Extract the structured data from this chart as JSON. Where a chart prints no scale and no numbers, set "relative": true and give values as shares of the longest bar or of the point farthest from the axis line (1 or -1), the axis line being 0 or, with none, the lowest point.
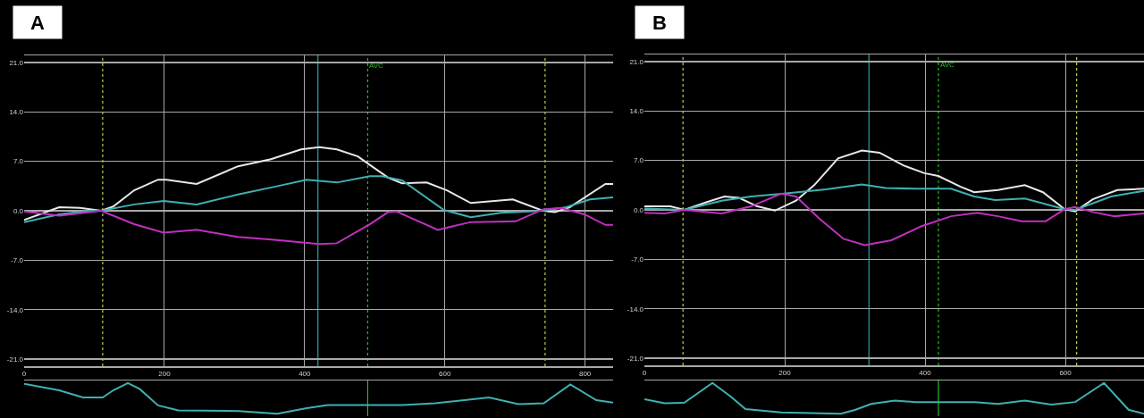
{
  "chart_data": [
    {
      "type": "line",
      "title": "A",
      "x": [
        0,
        50,
        80,
        110,
        127,
        157,
        191,
        203,
        246,
        305,
        352,
        395,
        421,
        446,
        476,
        493,
        519,
        539,
        574,
        603,
        637,
        697,
        740,
        757,
        778,
        829,
        840
      ],
      "series": [
        {
          "color": "#e8e8e8",
          "values": [
            -1.3,
            0.5,
            0.4,
            0,
            0.6,
            2.9,
            4.4,
            4.4,
            3.8,
            6.3,
            7.3,
            8.7,
            9.0,
            8.7,
            7.7,
            6.5,
            4.7,
            3.9,
            4.0,
            2.9,
            1.1,
            1.6,
            0,
            -0.2,
            0.5,
            3.8,
            3.8
          ]
        },
        {
          "color": "#40b0b0",
          "x": [
            0,
            50,
            93,
            110,
            157,
            199,
            246,
            305,
            357,
            403,
            446,
            493,
            510,
            539,
            599,
            637,
            680,
            740,
            773,
            807,
            840
          ],
          "values": [
            -1.6,
            -0.5,
            0,
            0,
            0.9,
            1.4,
            0.9,
            2.3,
            3.4,
            4.4,
            4.0,
            4.9,
            4.9,
            4.3,
            0.1,
            -0.9,
            -0.3,
            0,
            0.5,
            1.6,
            1.9
          ]
        },
        {
          "color": "#c030c0",
          "x": [
            0,
            50,
            110,
            157,
            199,
            246,
            305,
            357,
            421,
            446,
            493,
            519,
            531,
            590,
            637,
            701,
            740,
            765,
            799,
            829,
            840
          ],
          "values": [
            -0.1,
            -0.7,
            0,
            -1.9,
            -3.1,
            -2.7,
            -3.7,
            -4.1,
            -4.7,
            -4.6,
            -1.9,
            -0.2,
            -0.1,
            -2.7,
            -1.6,
            -1.5,
            0.2,
            0.4,
            -0.5,
            -2.0,
            -2.0
          ]
        }
      ],
      "xlim": [
        0,
        840
      ],
      "xticks": [
        0,
        200,
        400,
        600,
        800
      ],
      "ylim": [
        -22,
        22
      ],
      "yticks": [
        {
          "value": 21,
          "label": "21.0"
        },
        {
          "value": 14,
          "label": "14.0"
        },
        {
          "value": 7,
          "label": "7.0"
        },
        {
          "value": 0,
          "label": "0.0"
        },
        {
          "value": -7,
          "label": "-7.0"
        },
        {
          "value": -14,
          "label": "-14.0"
        },
        {
          "value": -21,
          "label": "-21.0"
        }
      ],
      "grid": true,
      "line_style": "solid",
      "marker": "none",
      "ref_lines": [
        {
          "axis": "x",
          "value": 112,
          "color": "#c8c850",
          "line_style": "dotted"
        },
        {
          "axis": "x",
          "value": 419,
          "color": "#30a0a0",
          "line_style": "solid"
        },
        {
          "axis": "x",
          "value": 490,
          "color": "#20c020",
          "line_style": "dotted",
          "label": "AVC"
        },
        {
          "axis": "x",
          "value": 743,
          "color": "#c8c850",
          "line_style": "dotted"
        }
      ]
    },
    {
      "type": "line",
      "relative": true,
      "tick_labels": false,
      "xlim": [
        0,
        840
      ],
      "line_style": "solid",
      "marker": "none",
      "x": [
        0,
        50,
        84,
        112,
        127,
        148,
        165,
        191,
        220,
        306,
        361,
        403,
        433,
        540,
        586,
        663,
        705,
        741,
        779,
        816,
        840
      ],
      "series": [
        {
          "color": "#40b0b0",
          "values": [
            0.97,
            0.76,
            0.53,
            0.53,
            0.76,
            1.0,
            0.8,
            0.27,
            0.11,
            0.09,
            0,
            0.18,
            0.28,
            0.28,
            0.34,
            0.53,
            0.31,
            0.34,
            0.95,
            0.44,
            0.36
          ]
        }
      ],
      "ref_lines": [
        {
          "axis": "x",
          "value": 490,
          "color": "#20c020",
          "line_style": "solid"
        }
      ]
    },
    {
      "type": "line",
      "title": "B",
      "x": [
        0,
        37,
        57,
        89,
        114,
        135,
        161,
        186,
        216,
        242,
        276,
        310,
        335,
        369,
        399,
        419,
        450,
        470,
        504,
        542,
        568,
        599,
        614,
        639,
        674,
        712
      ],
      "series": [
        {
          "color": "#e8e8e8",
          "values": [
            0.5,
            0.5,
            0,
            1.1,
            1.9,
            1.7,
            0.5,
            -0.1,
            1.3,
            3.5,
            7.3,
            8.4,
            8.1,
            6.3,
            5.2,
            4.8,
            3.3,
            2.5,
            2.8,
            3.5,
            2.5,
            0.1,
            -0.2,
            1.5,
            2.8,
            3.0
          ]
        },
        {
          "color": "#40b0b0",
          "x": [
            0,
            57,
            110,
            152,
            199,
            259,
            310,
            344,
            386,
            437,
            470,
            500,
            542,
            599,
            614,
            665,
            712
          ],
          "values": [
            0.2,
            0,
            1.3,
            1.9,
            2.3,
            2.9,
            3.6,
            3.1,
            3.0,
            3.0,
            1.9,
            1.4,
            1.6,
            0.1,
            0,
            1.9,
            2.7
          ]
        },
        {
          "color": "#c030c0",
          "x": [
            0,
            29,
            57,
            110,
            152,
            195,
            216,
            250,
            284,
            314,
            352,
            395,
            437,
            474,
            504,
            538,
            572,
            599,
            614,
            639,
            670,
            712
          ],
          "values": [
            -0.4,
            -0.5,
            0,
            -0.5,
            0.5,
            2.3,
            1.9,
            -1.3,
            -4.1,
            -5.0,
            -4.3,
            -2.3,
            -0.9,
            -0.4,
            -0.9,
            -1.6,
            -1.6,
            0.1,
            0.4,
            -0.3,
            -0.9,
            -0.5
          ]
        }
      ],
      "xlim": [
        0,
        712
      ],
      "xticks": [
        0,
        200,
        400,
        600
      ],
      "ylim": [
        -22,
        22
      ],
      "yticks": [
        {
          "value": 21,
          "label": "21.0"
        },
        {
          "value": 14,
          "label": "14.0"
        },
        {
          "value": 7,
          "label": "7.0"
        },
        {
          "value": 0,
          "label": "0.0"
        },
        {
          "value": -7,
          "label": "-7.0"
        },
        {
          "value": -14,
          "label": "-14.0"
        },
        {
          "value": -21,
          "label": "-21.0"
        }
      ],
      "grid": true,
      "line_style": "solid",
      "marker": "none",
      "ref_lines": [
        {
          "axis": "x",
          "value": 55,
          "color": "#c8c850",
          "line_style": "dotted"
        },
        {
          "axis": "x",
          "value": 320,
          "color": "#30a0a0",
          "line_style": "solid"
        },
        {
          "axis": "x",
          "value": 419,
          "color": "#20c020",
          "line_style": "dotted",
          "label": "AVC"
        },
        {
          "axis": "x",
          "value": 616,
          "color": "#c8c850",
          "line_style": "dotted"
        }
      ]
    },
    {
      "type": "line",
      "relative": true,
      "tick_labels": false,
      "xlim": [
        0,
        712
      ],
      "line_style": "solid",
      "marker": "none",
      "x": [
        0,
        29,
        57,
        97,
        123,
        144,
        195,
        280,
        301,
        323,
        357,
        386,
        471,
        504,
        542,
        580,
        614,
        655,
        690,
        712
      ],
      "series": [
        {
          "color": "#40b0b0",
          "values": [
            0.47,
            0.34,
            0.36,
            1.0,
            0.56,
            0.15,
            0.04,
            0,
            0.13,
            0.32,
            0.43,
            0.38,
            0.38,
            0.32,
            0.43,
            0.3,
            0.38,
            1.0,
            0.13,
            0
          ]
        }
      ],
      "ref_lines": [
        {
          "axis": "x",
          "value": 419,
          "color": "#20c020",
          "line_style": "solid"
        }
      ]
    }
  ]
}
